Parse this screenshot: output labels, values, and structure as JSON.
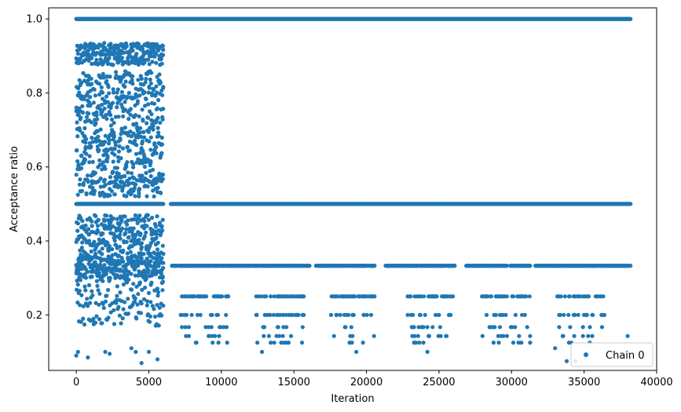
{
  "chart_data": {
    "type": "scatter",
    "title": "",
    "xlabel": "Iteration",
    "ylabel": "Acceptance ratio",
    "xlim": [
      -1900,
      40000
    ],
    "ylim": [
      0.05,
      1.03
    ],
    "x_ticks": [
      0,
      5000,
      10000,
      15000,
      20000,
      25000,
      30000,
      35000,
      40000
    ],
    "y_ticks": [
      0.2,
      0.4,
      0.6,
      0.8,
      1.0
    ],
    "x_tick_labels": [
      "0",
      "5000",
      "10000",
      "15000",
      "20000",
      "25000",
      "30000",
      "35000",
      "40000"
    ],
    "y_tick_labels": [
      "0.2",
      "0.4",
      "0.6",
      "0.8",
      "1.0"
    ],
    "grid": false,
    "legend_position": "bottom-right",
    "marker_color": "#1f77b4",
    "series": [
      {
        "name": "Chain 0",
        "phases": [
          {
            "x_range": [
              0,
              6000
            ],
            "level_bands": [
              [
                1.0,
                1.0
              ],
              [
                0.875,
                0.935
              ],
              [
                0.52,
                0.86
              ],
              [
                0.5,
                0.5
              ],
              [
                0.36,
                0.47
              ],
              [
                0.3,
                0.36
              ],
              [
                0.17,
                0.3
              ]
            ],
            "sparse_points": [
              [
                0,
                0.09
              ],
              [
                120,
                0.1
              ],
              [
                800,
                0.085
              ],
              [
                2000,
                0.1
              ],
              [
                2300,
                0.095
              ],
              [
                3800,
                0.11
              ],
              [
                4100,
                0.1
              ],
              [
                4500,
                0.07
              ],
              [
                5000,
                0.1
              ],
              [
                5600,
                0.08
              ]
            ]
          },
          {
            "x_range": [
              6000,
              38200
            ],
            "levels": [
              1.0,
              0.5,
              0.333,
              0.25,
              0.2,
              0.167,
              0.143,
              0.125
            ],
            "gaps": [
              [
                16100,
                16500
              ],
              [
                20600,
                21300
              ],
              [
                26100,
                26800
              ],
              [
                29700,
                29900
              ],
              [
                31300,
                31600
              ]
            ],
            "sparse_points": [
              [
                12800,
                0.1
              ],
              [
                19300,
                0.1
              ],
              [
                24200,
                0.1
              ],
              [
                33000,
                0.11
              ],
              [
                33800,
                0.075
              ],
              [
                34400,
                0.075
              ],
              [
                38000,
                0.143
              ]
            ]
          }
        ]
      }
    ]
  }
}
